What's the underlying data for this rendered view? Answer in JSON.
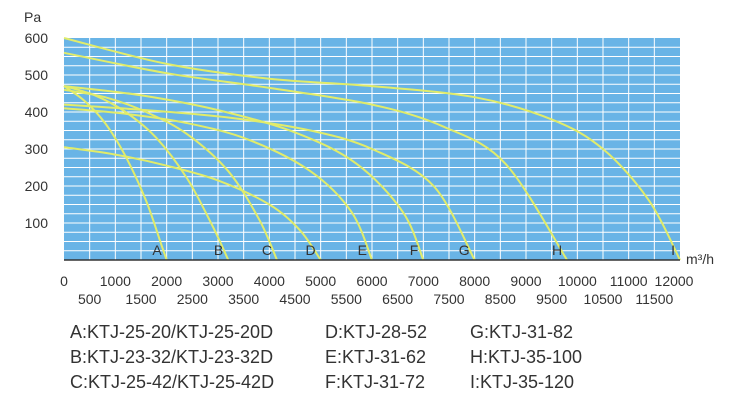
{
  "chart_data": {
    "type": "line",
    "ylabel": "Pa",
    "xlabel": "m³/h",
    "xlim": [
      0,
      12000
    ],
    "ylim": [
      0,
      600
    ],
    "grid": true,
    "colors": {
      "plot_bg": "#69b4e6",
      "grid": "#ffffff",
      "curve": "#e1ec6a",
      "axis": "#333333",
      "label": "#333333"
    },
    "y_ticks": [
      "100",
      "200",
      "300",
      "400",
      "500",
      "600"
    ],
    "x_ticks_major": [
      "0",
      "1000",
      "2000",
      "3000",
      "4000",
      "5000",
      "6000",
      "7000",
      "8000",
      "9000",
      "10000",
      "11000",
      "12000"
    ],
    "x_ticks_minor": [
      "500",
      "1500",
      "2500",
      "3500",
      "4500",
      "5500",
      "6500",
      "7500",
      "8500",
      "9500",
      "10500",
      "11500"
    ],
    "series": [
      {
        "name": "A",
        "x": [
          0,
          400,
          800,
          1200,
          1600,
          1900,
          2000
        ],
        "y": [
          470,
          430,
          370,
          280,
          160,
          40,
          0
        ]
      },
      {
        "name": "B",
        "x": [
          0,
          600,
          1200,
          1800,
          2400,
          2900,
          3200
        ],
        "y": [
          470,
          445,
          400,
          330,
          220,
          90,
          0
        ]
      },
      {
        "name": "C",
        "x": [
          0,
          800,
          1600,
          2400,
          3200,
          3800,
          4150
        ],
        "y": [
          460,
          440,
          400,
          340,
          240,
          110,
          0
        ]
      },
      {
        "name": "D",
        "x": [
          0,
          1000,
          2000,
          3000,
          4000,
          4600,
          5000
        ],
        "y": [
          305,
          285,
          255,
          215,
          150,
          80,
          0
        ]
      },
      {
        "name": "E",
        "x": [
          0,
          1200,
          2400,
          3600,
          4800,
          5600,
          6000
        ],
        "y": [
          410,
          395,
          370,
          325,
          240,
          130,
          0
        ]
      },
      {
        "name": "F",
        "x": [
          0,
          1500,
          3000,
          4500,
          5700,
          6600,
          7000
        ],
        "y": [
          470,
          445,
          405,
          345,
          260,
          130,
          0
        ]
      },
      {
        "name": "G",
        "x": [
          0,
          1600,
          3200,
          4800,
          6000,
          7200,
          8000
        ],
        "y": [
          420,
          405,
          385,
          350,
          300,
          200,
          0
        ]
      },
      {
        "name": "H",
        "x": [
          0,
          2000,
          4000,
          6000,
          7400,
          8600,
          9800
        ],
        "y": [
          560,
          505,
          465,
          420,
          360,
          260,
          0
        ]
      },
      {
        "name": "I",
        "x": [
          0,
          2000,
          4000,
          6000,
          8000,
          9500,
          10500,
          11400,
          12000
        ],
        "y": [
          600,
          530,
          490,
          470,
          440,
          380,
          300,
          160,
          0
        ]
      }
    ]
  },
  "legend": {
    "items": [
      "A:KTJ-25-20/KTJ-25-20D",
      "D:KTJ-28-52",
      "G:KTJ-31-82",
      "B:KTJ-23-32/KTJ-23-32D",
      "E:KTJ-31-62",
      "H:KTJ-35-100",
      "C:KTJ-25-42/KTJ-25-42D",
      "F:KTJ-31-72",
      "I:KTJ-35-120"
    ]
  }
}
